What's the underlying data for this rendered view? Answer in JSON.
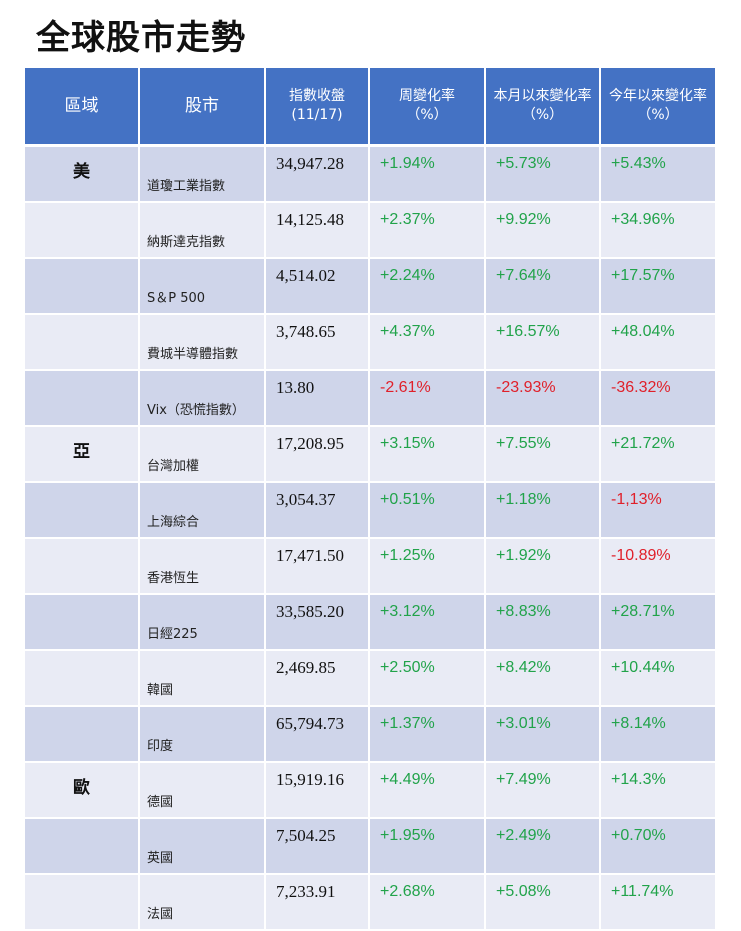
{
  "title": "全球股市走勢",
  "headers": {
    "region": "區域",
    "market": "股市",
    "close_line1": "指數收盤",
    "close_line2": "(11/17)",
    "week_line1": "周變化率",
    "week_line2": "（%）",
    "month_line1": "本月以來變化率",
    "month_line2": "（%）",
    "year_line1": "今年以來變化率",
    "year_line2": "（%）"
  },
  "colors": {
    "header_bg": "#4472c4",
    "row_dark": "#cfd5ea",
    "row_light": "#e9ebf5",
    "positive": "#21a34a",
    "negative": "#e0202a"
  },
  "rows": [
    {
      "region": "美",
      "market": "道瓊工業指數",
      "close": "34,947.28",
      "week": "+1.94%",
      "month": "+5.73%",
      "ytd": "+5.43%"
    },
    {
      "region": "",
      "market": "納斯達克指數",
      "close": "14,125.48",
      "week": "+2.37%",
      "month": "+9.92%",
      "ytd": "+34.96%"
    },
    {
      "region": "",
      "market": "S＆P 500",
      "close": "4,514.02",
      "week": "+2.24%",
      "month": "+7.64%",
      "ytd": "+17.57%"
    },
    {
      "region": "",
      "market": "費城半導體指數",
      "close": "3,748.65",
      "week": "+4.37%",
      "month": "+16.57%",
      "ytd": "+48.04%"
    },
    {
      "region": "",
      "market": "Vix（恐慌指數）",
      "close": "13.80",
      "week": "-2.61%",
      "month": "-23.93%",
      "ytd": "-36.32%"
    },
    {
      "region": "亞",
      "market": "台灣加權",
      "close": "17,208.95",
      "week": "+3.15%",
      "month": "+7.55%",
      "ytd": "+21.72%"
    },
    {
      "region": "",
      "market": "上海綜合",
      "close": "3,054.37",
      "week": "+0.51%",
      "month": "+1.18%",
      "ytd": "-1,13%"
    },
    {
      "region": "",
      "market": "香港恆生",
      "close": "17,471.50",
      "week": "+1.25%",
      "month": "+1.92%",
      "ytd": "-10.89%"
    },
    {
      "region": "",
      "market": "日經225",
      "close": "33,585.20",
      "week": "+3.12%",
      "month": "+8.83%",
      "ytd": "+28.71%"
    },
    {
      "region": "",
      "market": "韓國",
      "close": "2,469.85",
      "week": "+2.50%",
      "month": "+8.42%",
      "ytd": "+10.44%"
    },
    {
      "region": "",
      "market": "印度",
      "close": "65,794.73",
      "week": "+1.37%",
      "month": "+3.01%",
      "ytd": "+8.14%"
    },
    {
      "region": "歐",
      "market": "德國",
      "close": "15,919.16",
      "week": "+4.49%",
      "month": "+7.49%",
      "ytd": "+14.3%"
    },
    {
      "region": "",
      "market": "英國",
      "close": "7,504.25",
      "week": "+1.95%",
      "month": "+2.49%",
      "ytd": "+0.70%"
    },
    {
      "region": "",
      "market": "法國",
      "close": "7,233.91",
      "week": "+2.68%",
      "month": "+5.08%",
      "ytd": "+11.74%"
    }
  ]
}
